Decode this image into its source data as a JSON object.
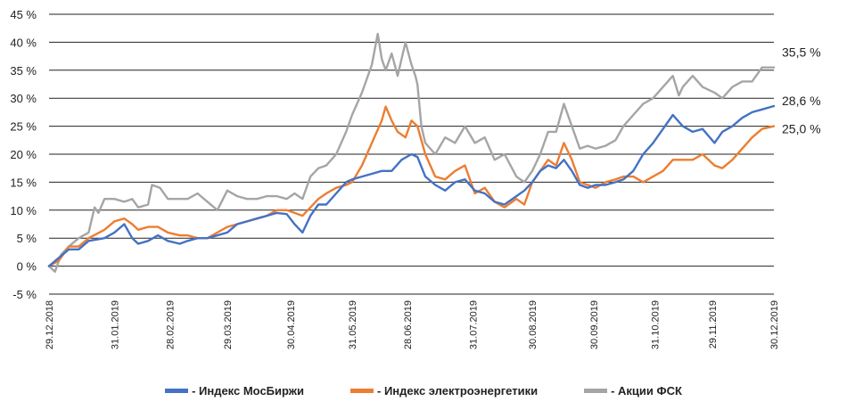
{
  "chart_data": {
    "type": "line",
    "ylabel": "",
    "xlabel": "",
    "ylim": [
      -5,
      45
    ],
    "y_ticks": [
      -5,
      0,
      5,
      10,
      15,
      20,
      25,
      30,
      35,
      40,
      45
    ],
    "y_tick_labels": [
      "-5 %",
      "0 %",
      "5 %",
      "10 %",
      "15 %",
      "20 %",
      "25 %",
      "30 %",
      "35 %",
      "40 %",
      "45 %"
    ],
    "x_range": [
      0,
      366
    ],
    "x_ticks": [
      {
        "day": 0,
        "label": "29.12.2018"
      },
      {
        "day": 33,
        "label": "31.01.2019"
      },
      {
        "day": 61,
        "label": "28.02.2019"
      },
      {
        "day": 90,
        "label": "29.03.2019"
      },
      {
        "day": 122,
        "label": "30.04.2019"
      },
      {
        "day": 153,
        "label": "31.05.2019"
      },
      {
        "day": 181,
        "label": "28.06.2019"
      },
      {
        "day": 214,
        "label": "31.07.2019"
      },
      {
        "day": 244,
        "label": "30.08.2019"
      },
      {
        "day": 275,
        "label": "30.09.2019"
      },
      {
        "day": 306,
        "label": "31.10.2019"
      },
      {
        "day": 335,
        "label": "29.11.2019"
      },
      {
        "day": 366,
        "label": "30.12.2019"
      }
    ],
    "series": [
      {
        "name": "- Индекс МосБиржи",
        "color": "#4472c4",
        "end_label": "28,6 %",
        "x": [
          0,
          5,
          10,
          15,
          20,
          28,
          33,
          38,
          42,
          45,
          50,
          55,
          60,
          66,
          70,
          75,
          80,
          90,
          95,
          100,
          105,
          110,
          115,
          120,
          124,
          128,
          132,
          136,
          140,
          145,
          150,
          153,
          158,
          163,
          168,
          173,
          178,
          183,
          186,
          190,
          195,
          200,
          205,
          210,
          215,
          220,
          225,
          230,
          236,
          240,
          244,
          248,
          252,
          256,
          260,
          264,
          268,
          272,
          276,
          281,
          286,
          290,
          295,
          300,
          305,
          310,
          315,
          320,
          325,
          330,
          336,
          340,
          345,
          350,
          355,
          360,
          366
        ],
        "values": [
          0,
          1.5,
          3,
          3,
          4.5,
          5,
          6,
          7.5,
          5,
          4,
          4.5,
          5.5,
          4.5,
          4,
          4.5,
          5,
          5,
          6,
          7.5,
          8,
          8.5,
          9,
          9.5,
          9.3,
          7.5,
          6,
          9,
          11,
          11,
          13,
          15,
          15.5,
          16,
          16.5,
          17,
          17,
          19,
          20,
          19.5,
          16,
          14.5,
          13.5,
          15,
          15.5,
          13.5,
          13,
          11.5,
          11,
          12.5,
          13.5,
          15,
          17,
          18,
          17.5,
          19,
          17,
          14.5,
          14,
          14.5,
          14.5,
          15,
          15.5,
          17,
          20,
          22,
          24.5,
          27,
          25,
          24,
          24.5,
          22,
          24,
          25,
          26.5,
          27.5,
          28,
          28.6
        ]
      },
      {
        "name": "- Индекс электроэнергетики",
        "color": "#ed7d31",
        "end_label": "25,0 %",
        "x": [
          0,
          5,
          10,
          15,
          20,
          28,
          33,
          38,
          42,
          45,
          50,
          55,
          60,
          66,
          70,
          75,
          80,
          90,
          95,
          100,
          105,
          110,
          115,
          120,
          124,
          128,
          132,
          136,
          140,
          145,
          150,
          153,
          158,
          163,
          168,
          170,
          173,
          176,
          180,
          183,
          186,
          190,
          195,
          200,
          205,
          210,
          215,
          220,
          225,
          230,
          236,
          240,
          244,
          248,
          252,
          256,
          260,
          264,
          268,
          272,
          276,
          281,
          286,
          290,
          295,
          300,
          305,
          310,
          315,
          320,
          325,
          330,
          336,
          340,
          345,
          350,
          355,
          360,
          366
        ],
        "values": [
          0,
          1,
          3.5,
          3.5,
          5,
          6.5,
          8,
          8.5,
          7.5,
          6.5,
          7,
          7,
          6,
          5.5,
          5.5,
          5,
          5,
          7,
          7.5,
          8,
          8.5,
          9,
          10,
          10,
          9.5,
          9,
          10.5,
          12,
          13,
          14,
          14.5,
          15,
          18,
          22,
          26,
          28.5,
          26,
          24,
          23,
          26,
          25,
          20,
          16,
          15.5,
          17,
          18,
          13,
          14,
          11.5,
          10.5,
          12,
          11,
          15,
          17,
          19,
          18,
          22,
          19,
          15,
          14.5,
          14,
          15,
          15.5,
          16,
          16,
          15,
          16,
          17,
          19,
          19,
          19,
          20,
          18,
          17.5,
          19,
          21,
          23,
          24.5,
          25
        ]
      },
      {
        "name": "- Акции ФСК",
        "color": "#a5a5a5",
        "end_label": "35,5 %",
        "x": [
          0,
          3,
          6,
          10,
          15,
          20,
          23,
          25,
          28,
          33,
          38,
          42,
          45,
          50,
          52,
          56,
          60,
          66,
          70,
          75,
          80,
          85,
          90,
          95,
          100,
          105,
          110,
          115,
          120,
          124,
          128,
          132,
          136,
          140,
          145,
          150,
          153,
          158,
          163,
          166,
          168,
          170,
          173,
          176,
          180,
          183,
          185,
          186,
          188,
          190,
          195,
          200,
          205,
          210,
          215,
          220,
          225,
          230,
          236,
          240,
          244,
          248,
          252,
          256,
          260,
          264,
          268,
          272,
          276,
          281,
          286,
          290,
          295,
          300,
          305,
          310,
          315,
          318,
          320,
          325,
          330,
          336,
          340,
          345,
          350,
          355,
          360,
          366
        ],
        "values": [
          0,
          -1,
          2,
          3.5,
          5,
          6,
          10.5,
          9.5,
          12,
          12,
          11.5,
          12,
          10.5,
          11,
          14.5,
          14,
          12,
          12,
          12,
          13,
          11.5,
          10,
          13.5,
          12.5,
          12,
          12,
          12.5,
          12.5,
          12,
          13,
          12,
          16,
          17.5,
          18,
          20,
          24,
          27,
          31,
          36,
          41.5,
          37,
          35,
          38,
          34,
          40,
          36,
          34,
          32.5,
          25,
          22,
          20,
          23,
          22,
          25,
          22,
          23,
          19,
          20,
          16,
          15,
          17,
          20,
          24,
          24,
          29,
          25,
          21,
          21.5,
          21,
          21.5,
          22.5,
          25,
          27,
          29,
          30,
          32,
          34,
          30.5,
          32,
          34,
          32,
          31,
          30,
          32,
          33,
          33,
          35.5,
          35.5
        ]
      }
    ]
  }
}
